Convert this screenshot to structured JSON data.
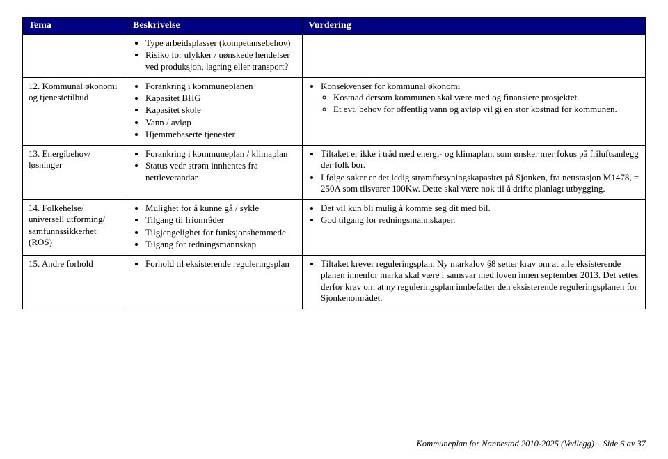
{
  "table": {
    "headers": [
      "Tema",
      "Beskrivelse",
      "Vurdering"
    ],
    "rows": [
      {
        "tema": "",
        "besk": [
          "Type arbeidsplasser (kompetansebehov)",
          "Risiko for ulykker / uønskede hendelser ved produksjon, lagring eller transport?"
        ],
        "vurd": null
      },
      {
        "tema": "12. Kommunal økonomi og tjenestetilbud",
        "besk": [
          "Forankring i kommuneplanen",
          "Kapasitet BHG",
          "Kapasitet skole",
          "Vann / avløp",
          "Hjemmebaserte tjenester"
        ],
        "vurd": {
          "items": [
            {
              "text": "Konsekvenser for kommunal økonomi",
              "sub": [
                "Kostnad dersom kommunen skal være med og finansiere prosjektet.",
                "Et evt. behov for offentlig vann og avløp vil gi en stor kostnad for kommunen."
              ]
            }
          ]
        }
      },
      {
        "tema": "13. Energibehov/ løsninger",
        "besk": [
          "Forankring i kommuneplan / klimaplan",
          "Status vedr strøm innhentes fra nettleverandør"
        ],
        "vurd": {
          "items": [
            {
              "text": "Tiltaket er ikke i tråd med energi- og klimaplan, som ønsker mer fokus på friluftsanlegg der folk bor."
            },
            {
              "text": "I følge søker er det ledig strømforsyningskapasitet på Sjonken, fra nettstasjon M1478, = 250A som tilsvarer 100Kw. Dette skal være nok til å drifte planlagt utbygging."
            }
          ]
        }
      },
      {
        "tema": "14. Folkehelse/ universell utforming/ samfunnssikkerhet (ROS)",
        "besk": [
          "Mulighet for å kunne gå / sykle",
          "Tilgang til friområder",
          "Tilgjengelighet for funksjonshemmede",
          "Tilgang for redningsmannskap"
        ],
        "vurd": {
          "items": [
            {
              "text": "Det vil kun bli mulig å komme seg dit med bil."
            },
            {
              "text": "God tilgang for redningsmannskaper."
            }
          ]
        }
      },
      {
        "tema": "15. Andre forhold",
        "besk": [
          "Forhold til eksisterende reguleringsplan"
        ],
        "vurd": {
          "items": [
            {
              "text": "Tiltaket krever reguleringsplan. Ny markalov §8 setter krav om at alle eksisterende planen innenfor marka skal være i samsvar med loven innen september 2013. Det settes derfor krav om at ny reguleringsplan innbefatter den eksisterende reguleringsplanen for Sjonkenområdet."
            }
          ]
        }
      }
    ]
  },
  "footer": "Kommuneplan for Nannestad 2010-2025 (Vedlegg) – Side 6 av 37",
  "colors": {
    "header_bg": "#000080",
    "header_fg": "#ffffff",
    "border": "#000000",
    "text": "#000000",
    "background": "#ffffff"
  }
}
